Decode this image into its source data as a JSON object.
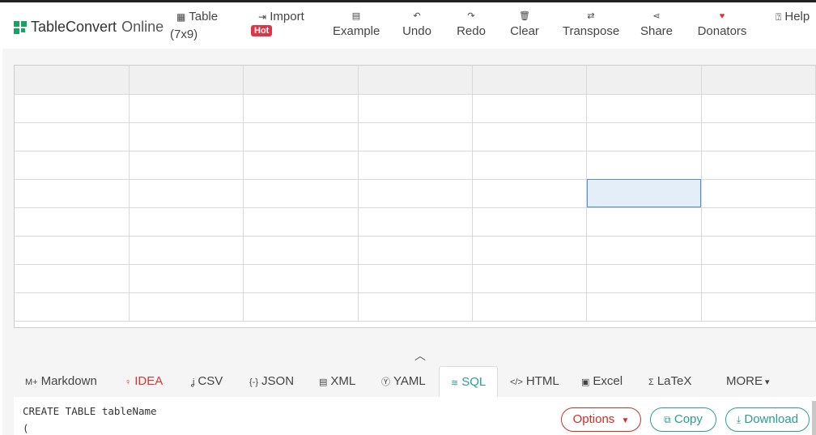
{
  "brand": {
    "name_main": "TableConvert",
    "name_sub": "Online",
    "color": "#1aa260"
  },
  "nav": {
    "table_label": "Table",
    "table_size": "(7x9)",
    "import_label": "Import",
    "hot_badge": "Hot",
    "example": "Example",
    "undo": "Undo",
    "redo": "Redo",
    "clear": "Clear",
    "transpose": "Transpose",
    "share": "Share",
    "donators": "Donators",
    "help": "Help"
  },
  "grid": {
    "columns": 7,
    "rows": 9,
    "selected_cell": {
      "row": 4,
      "col": 5
    }
  },
  "tabs": [
    {
      "label": "Markdown",
      "icon": "markdown-icon",
      "glyph": "M+"
    },
    {
      "label": "IDEA",
      "icon": "lightbulb-icon",
      "glyph": "♀"
    },
    {
      "label": "CSV",
      "icon": "csv-icon",
      "glyph": "ʝ"
    },
    {
      "label": "JSON",
      "icon": "braces-icon",
      "glyph": "{-}"
    },
    {
      "label": "XML",
      "icon": "file-code-icon",
      "glyph": "▤"
    },
    {
      "label": "YAML",
      "icon": "yaml-icon",
      "glyph": "Ⓨ"
    },
    {
      "label": "SQL",
      "icon": "database-icon",
      "glyph": "≋"
    },
    {
      "label": "HTML",
      "icon": "code-icon",
      "glyph": "</>"
    },
    {
      "label": "Excel",
      "icon": "excel-icon",
      "glyph": "▣"
    },
    {
      "label": "LaTeX",
      "icon": "sigma-icon",
      "glyph": "Σ"
    },
    {
      "label": "MORE",
      "icon": "caret-down-icon",
      "glyph": "▾"
    }
  ],
  "active_tab": "SQL",
  "code": {
    "line1": "CREATE TABLE tableName",
    "line2": "("
  },
  "buttons": {
    "options": "Options",
    "copy": "Copy",
    "download": "Download"
  },
  "colors": {
    "accent": "#2a9d8f",
    "danger": "#c9302c",
    "selection": "#4a90e2"
  }
}
